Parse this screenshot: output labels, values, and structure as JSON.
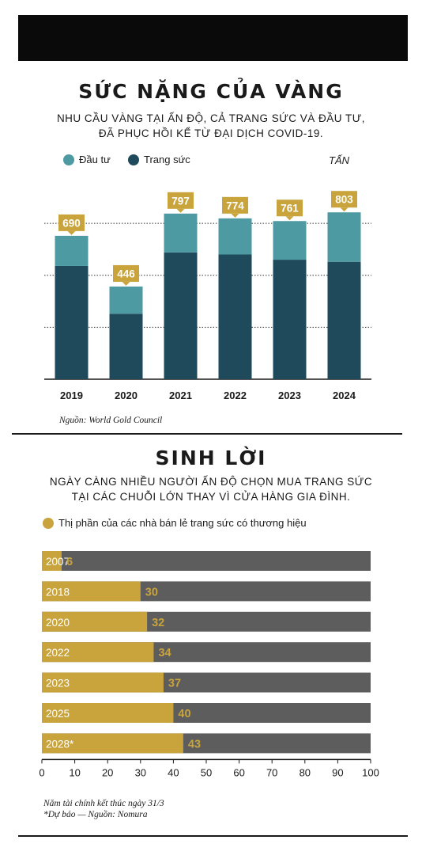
{
  "colors": {
    "investment": "#4e9aa3",
    "jewellery": "#1e4a5b",
    "gold": "#c9a43c",
    "gray": "#5d5d5d",
    "dark": "#0a0a0a"
  },
  "chart1": {
    "title": "SỨC NẶNG CỦA VÀNG",
    "subtitle_line1": "NHU CẦU VÀNG TẠI ẤN ĐỘ, CẢ TRANG SỨC VÀ ĐẦU TƯ,",
    "subtitle_line2": "ĐÃ PHỤC HỒI KỂ TỪ ĐẠI DỊCH COVID-19.",
    "legend_investment": "Đầu tư",
    "legend_jewellery": "Trang sức",
    "unit": "TẤN",
    "source": "Nguồn: World Gold Council"
  },
  "chart2": {
    "title": "SINH LỜI",
    "subtitle_line1": "NGÀY CÀNG NHIỀU NGƯỜI ẤN ĐỘ CHỌN MUA TRANG SỨC",
    "subtitle_line2": "TẠI CÁC CHUỖI LỚN THAY VÌ CỬA HÀNG GIA ĐÌNH.",
    "legend": "Thị phần của các nhà bán lẻ trang sức có thương hiệu",
    "note_line1": "Năm tài chính kết thúc ngày 31/3",
    "note_line2": "*Dự báo — Nguồn: Nomura"
  },
  "chart_data": [
    {
      "type": "bar",
      "stacked": true,
      "title": "SỨC NẶNG CỦA VÀNG",
      "categories": [
        "2019",
        "2020",
        "2021",
        "2022",
        "2023",
        "2024"
      ],
      "series": [
        {
          "name": "Trang sức",
          "values": [
            545,
            315,
            610,
            600,
            575,
            565
          ]
        },
        {
          "name": "Đầu tư",
          "values": [
            145,
            131,
            187,
            174,
            186,
            238
          ]
        }
      ],
      "totals": [
        690,
        446,
        797,
        774,
        761,
        803
      ],
      "unit": "TẤN",
      "ylim": [
        0,
        1000
      ],
      "grid": true,
      "legend": "top-left"
    },
    {
      "type": "bar",
      "orientation": "horizontal",
      "title": "SINH LỜI",
      "categories": [
        "2007",
        "2018",
        "2020",
        "2022",
        "2023",
        "2025",
        "2028*"
      ],
      "series": [
        {
          "name": "Thị phần của các nhà bán lẻ trang sức có thương hiệu",
          "values": [
            6,
            30,
            32,
            34,
            37,
            40,
            43
          ]
        }
      ],
      "xlim": [
        0,
        100
      ],
      "xticks": [
        0,
        10,
        20,
        30,
        40,
        50,
        60,
        70,
        80,
        90,
        100
      ],
      "legend": "top-left"
    }
  ]
}
